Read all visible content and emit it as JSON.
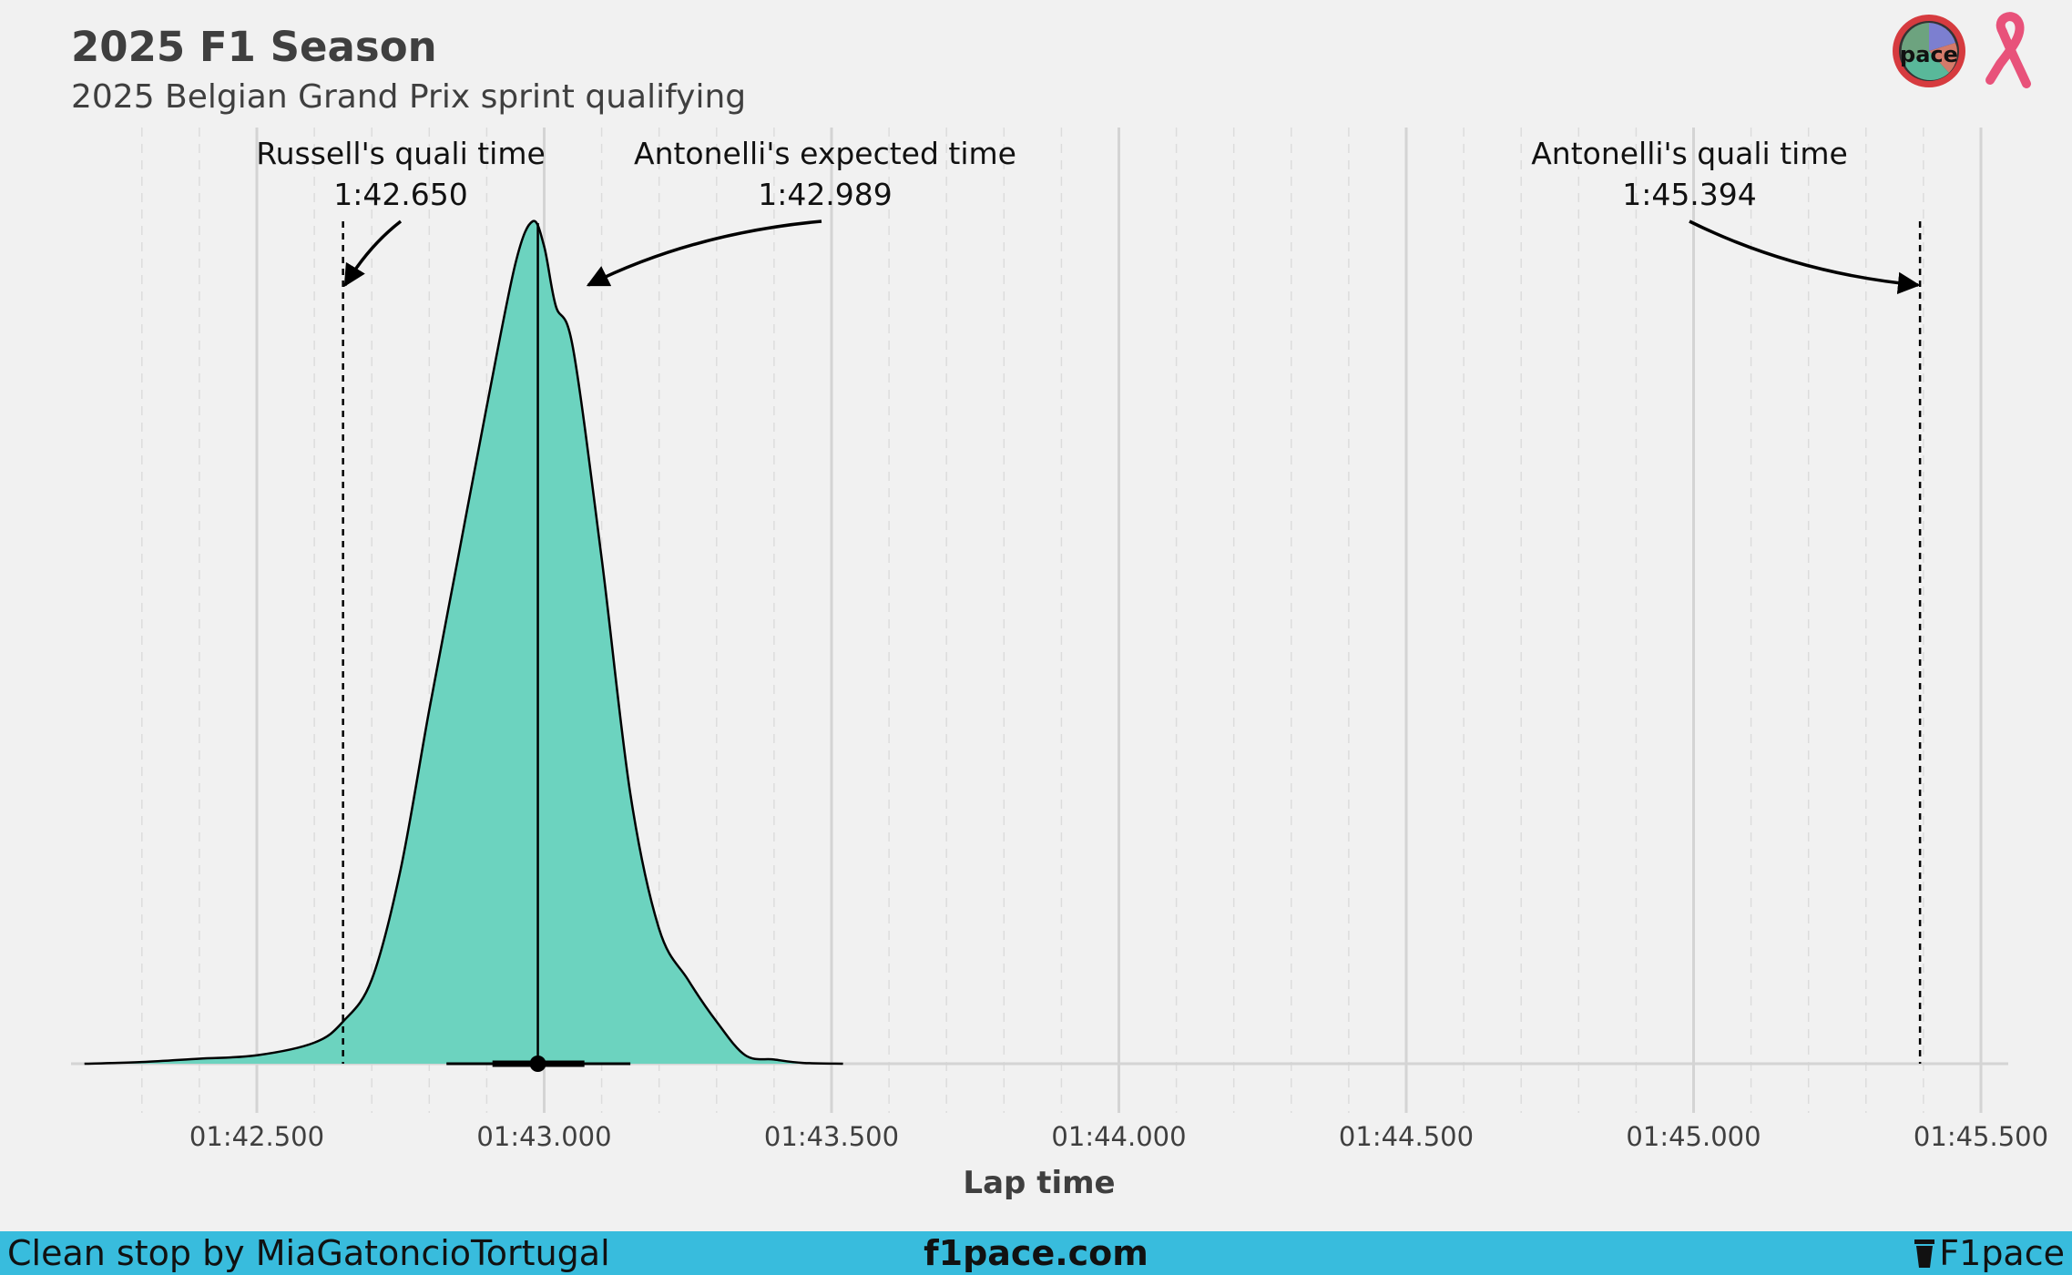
{
  "header": {
    "title": "2025 F1 Season",
    "subtitle": "2025 Belgian Grand Prix sprint qualifying"
  },
  "logos": {
    "pace_logo_text": "pace",
    "icons": [
      "pace-logo-icon",
      "pink-ribbon-icon"
    ]
  },
  "chart_data": {
    "type": "area",
    "xlabel": "Lap time",
    "xlim": [
      102.3,
      105.55
    ],
    "x_ticks": [
      102.5,
      103.0,
      103.5,
      104.0,
      104.5,
      105.0,
      105.5
    ],
    "x_tick_labels": [
      "01:42.500",
      "01:43.000",
      "01:43.500",
      "01:44.000",
      "01:44.500",
      "01:45.000",
      "01:45.500"
    ],
    "grid": true,
    "density": {
      "x": [
        102.2,
        102.3,
        102.4,
        102.5,
        102.6,
        102.65,
        102.7,
        102.75,
        102.8,
        102.85,
        102.9,
        102.95,
        102.98,
        103.0,
        103.02,
        103.05,
        103.1,
        103.15,
        103.2,
        103.25,
        103.3,
        103.35,
        103.4,
        103.45,
        103.52
      ],
      "y": [
        0.0,
        0.002,
        0.006,
        0.01,
        0.025,
        0.05,
        0.1,
        0.23,
        0.42,
        0.6,
        0.78,
        0.95,
        1.0,
        0.97,
        0.9,
        0.85,
        0.6,
        0.32,
        0.16,
        0.1,
        0.05,
        0.01,
        0.005,
        0.001,
        0.0
      ]
    },
    "summary": {
      "median": 102.989,
      "inner_interval": [
        102.91,
        103.07
      ],
      "outer_interval": [
        102.83,
        103.15
      ]
    },
    "annotations": [
      {
        "label": "Russell's quali time",
        "value": "1:42.650",
        "x": 102.65,
        "style": "dashed-line"
      },
      {
        "label": "Antonelli's expected time",
        "value": "1:42.989",
        "x": 102.989,
        "style": "solid-line"
      },
      {
        "label": "Antonelli's quali time",
        "value": "1:45.394",
        "x": 105.394,
        "style": "dashed-line"
      }
    ],
    "fill_color": "#6cd3bf",
    "line_color": "#000000"
  },
  "footer": {
    "credit": "Clean stop by MiaGatoncioTortugal",
    "site": "f1pace.com",
    "brand": "F1pace",
    "background": "#38bcdd"
  }
}
